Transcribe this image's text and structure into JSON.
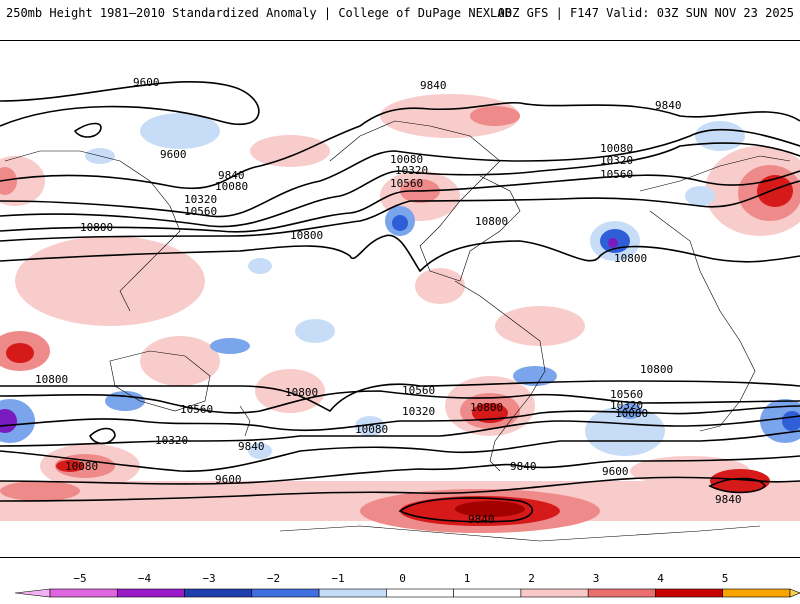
{
  "header": {
    "left": "250mb Height 1981–2010 Standardized Anomaly | College of DuPage NEXLAB",
    "right": "00Z GFS | F147 Valid: 03Z SUN NOV 23 2025"
  },
  "contour_labels": [
    "9600",
    "9840",
    "10080",
    "10320",
    "10560",
    "10800"
  ],
  "legend": {
    "ticks": [
      "−5",
      "−4",
      "−3",
      "−2",
      "−1",
      "0",
      "1",
      "2",
      "3",
      "4",
      "5"
    ],
    "colors": [
      "#e066e0",
      "#9a1bc7",
      "#1f3fae",
      "#3f6fe0",
      "#c4dcf7",
      "#ffffff",
      "#ffffff",
      "#f9c8c8",
      "#ec6f6f",
      "#c80000",
      "#f7a400"
    ]
  },
  "anomaly_colors": {
    "light_pos": "#f9cccc",
    "med_pos": "#ef8a8a",
    "strong_pos": "#d61919",
    "extreme_pos": "#a30000",
    "light_neg": "#c7ddf7",
    "med_neg": "#7aa4ec",
    "strong_neg": "#2f5fd6",
    "extreme_neg": "#7a1bbf"
  }
}
